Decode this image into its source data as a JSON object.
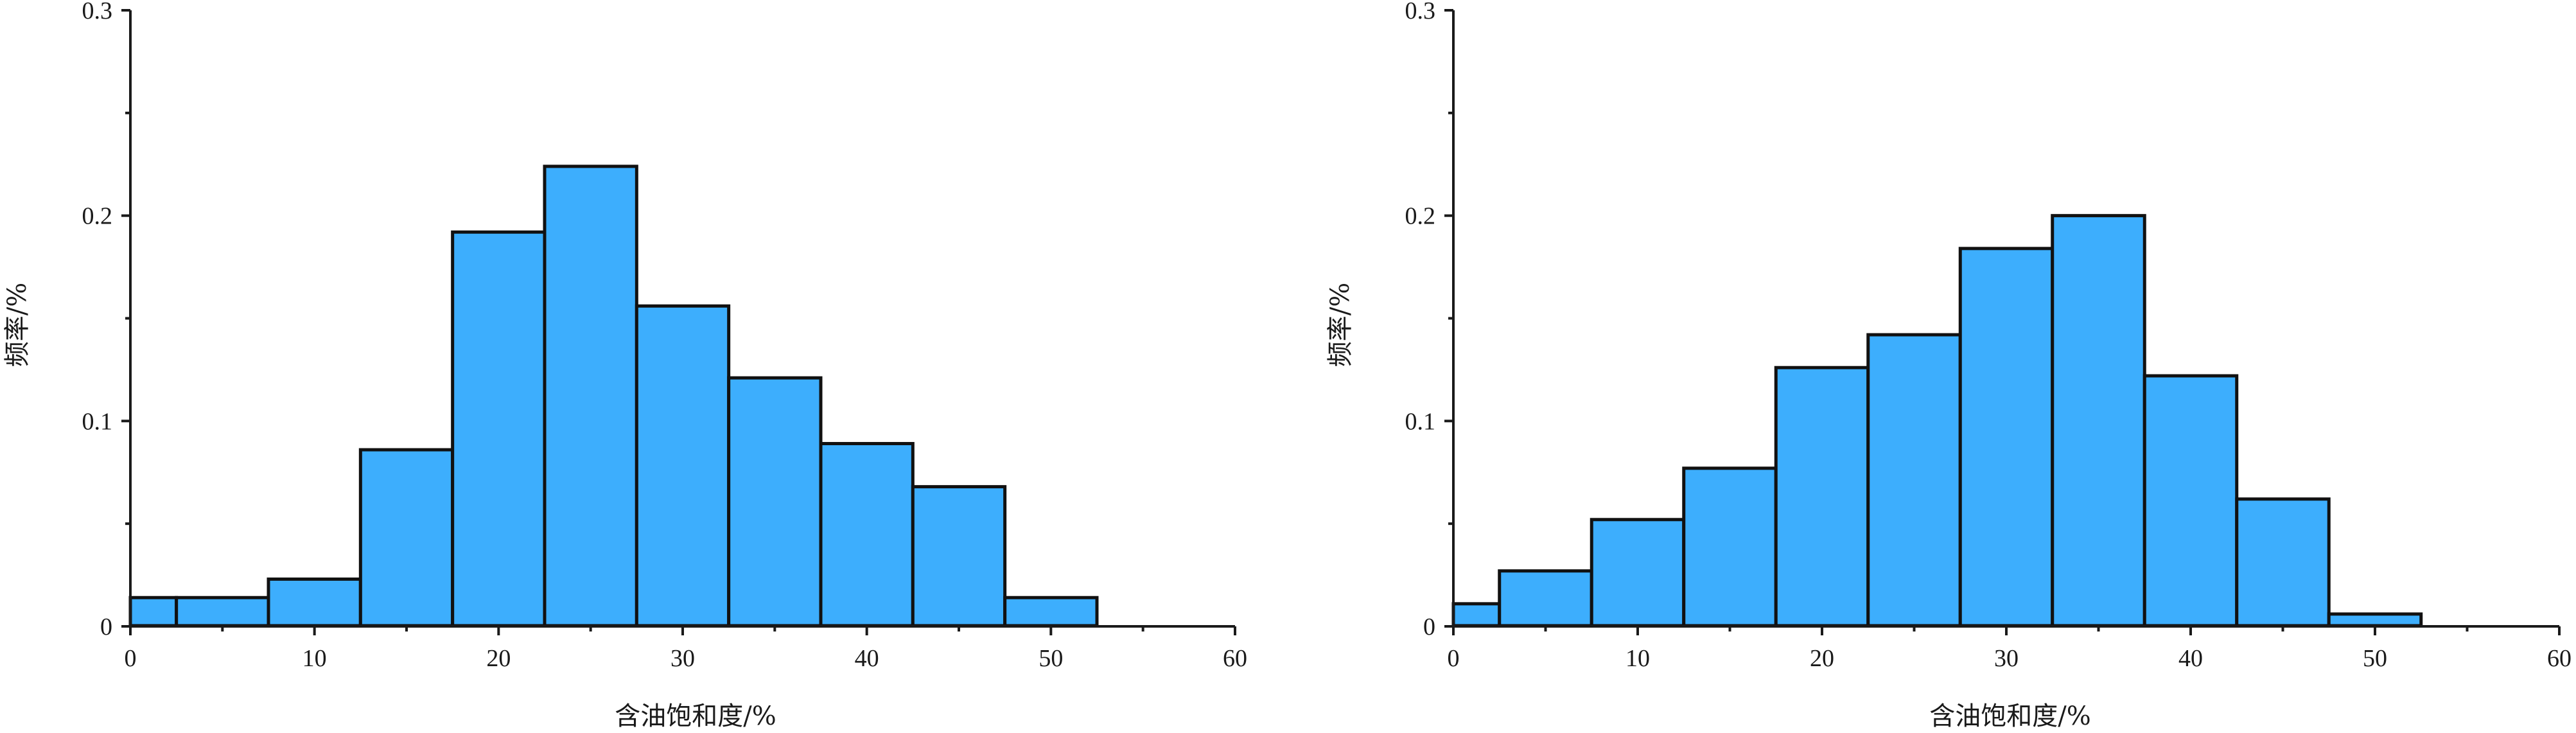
{
  "colors": {
    "bar_fill": "#3daefd",
    "bar_stroke": "#111111",
    "axis": "#1a1a1a"
  },
  "chart_data": [
    {
      "type": "bar",
      "title": "",
      "xlabel": "含油饱和度/%",
      "ylabel": "频率/%",
      "xlim": [
        0,
        60
      ],
      "ylim": [
        0,
        0.3
      ],
      "xticks": [
        "0",
        "10",
        "20",
        "30",
        "40",
        "50",
        "60"
      ],
      "yticks": [
        "0",
        "0.1",
        "0.2",
        "0.3"
      ],
      "bin_edges": [
        0,
        2.5,
        7.5,
        12.5,
        17.5,
        22.5,
        27.5,
        32.5,
        37.5,
        42.5,
        47.5,
        52.5
      ],
      "values": [
        0.014,
        0.014,
        0.023,
        0.086,
        0.192,
        0.224,
        0.156,
        0.121,
        0.089,
        0.068,
        0.014
      ],
      "grid": false
    },
    {
      "type": "bar",
      "title": "",
      "xlabel": "含油饱和度/%",
      "ylabel": "频率/%",
      "xlim": [
        0,
        60
      ],
      "ylim": [
        0,
        0.3
      ],
      "xticks": [
        "0",
        "10",
        "20",
        "30",
        "40",
        "50",
        "60"
      ],
      "yticks": [
        "0",
        "0.1",
        "0.2",
        "0.3"
      ],
      "bin_edges": [
        0,
        2.5,
        7.5,
        12.5,
        17.5,
        22.5,
        27.5,
        32.5,
        37.5,
        42.5,
        47.5,
        52.5
      ],
      "values": [
        0.011,
        0.027,
        0.052,
        0.077,
        0.126,
        0.142,
        0.184,
        0.2,
        0.122,
        0.062,
        0.006
      ],
      "grid": false
    }
  ]
}
